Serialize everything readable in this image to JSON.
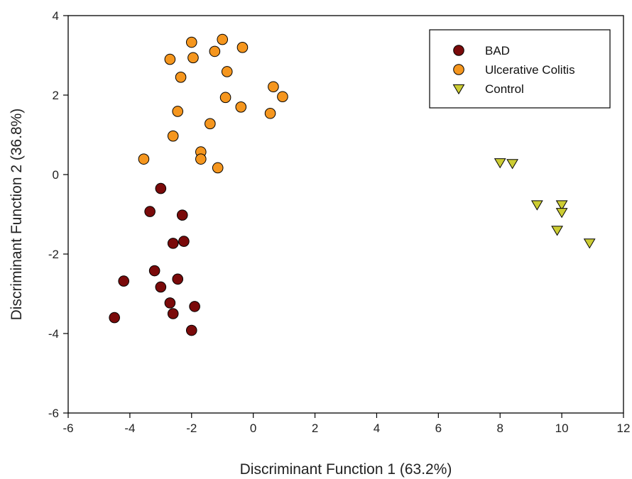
{
  "chart_data": {
    "type": "scatter",
    "title": "",
    "xlabel": "Discriminant Function 1 (63.2%)",
    "ylabel": "Discriminant Function 2 (36.8%)",
    "xlim": [
      -6,
      12
    ],
    "ylim": [
      -6,
      4
    ],
    "xticks": [
      -6,
      -4,
      -2,
      0,
      2,
      4,
      6,
      8,
      10,
      12
    ],
    "yticks": [
      -6,
      -4,
      -2,
      0,
      2,
      4
    ],
    "grid": false,
    "legend_position": "top-right",
    "series": [
      {
        "name": "BAD",
        "marker": "circle",
        "color": "#7a0a0a",
        "points": [
          [
            -3.0,
            -0.35
          ],
          [
            -3.35,
            -0.93
          ],
          [
            -2.3,
            -1.02
          ],
          [
            -2.6,
            -1.73
          ],
          [
            -2.25,
            -1.68
          ],
          [
            -3.2,
            -2.42
          ],
          [
            -2.45,
            -2.63
          ],
          [
            -4.2,
            -2.68
          ],
          [
            -3.0,
            -2.83
          ],
          [
            -2.7,
            -3.23
          ],
          [
            -1.9,
            -3.32
          ],
          [
            -2.6,
            -3.5
          ],
          [
            -4.5,
            -3.6
          ],
          [
            -2.0,
            -3.92
          ]
        ]
      },
      {
        "name": "Ulcerative Colitis",
        "marker": "circle",
        "color": "#f5961e",
        "points": [
          [
            -2.7,
            2.9
          ],
          [
            -2.0,
            3.33
          ],
          [
            -1.0,
            3.4
          ],
          [
            -0.35,
            3.2
          ],
          [
            -1.25,
            3.1
          ],
          [
            -1.95,
            2.94
          ],
          [
            -2.35,
            2.45
          ],
          [
            -0.85,
            2.59
          ],
          [
            0.65,
            2.21
          ],
          [
            0.95,
            1.96
          ],
          [
            -0.9,
            1.94
          ],
          [
            -0.4,
            1.7
          ],
          [
            0.55,
            1.54
          ],
          [
            -2.45,
            1.59
          ],
          [
            -1.4,
            1.28
          ],
          [
            -2.6,
            0.97
          ],
          [
            -1.7,
            0.57
          ],
          [
            -1.7,
            0.39
          ],
          [
            -3.55,
            0.39
          ],
          [
            -1.15,
            0.17
          ]
        ]
      },
      {
        "name": "Control",
        "marker": "triangle-down",
        "color": "#cccc33",
        "points": [
          [
            8.0,
            0.3
          ],
          [
            8.4,
            0.28
          ],
          [
            9.2,
            -0.76
          ],
          [
            10.0,
            -0.76
          ],
          [
            10.0,
            -0.95
          ],
          [
            9.85,
            -1.4
          ],
          [
            10.9,
            -1.72
          ]
        ]
      }
    ]
  }
}
